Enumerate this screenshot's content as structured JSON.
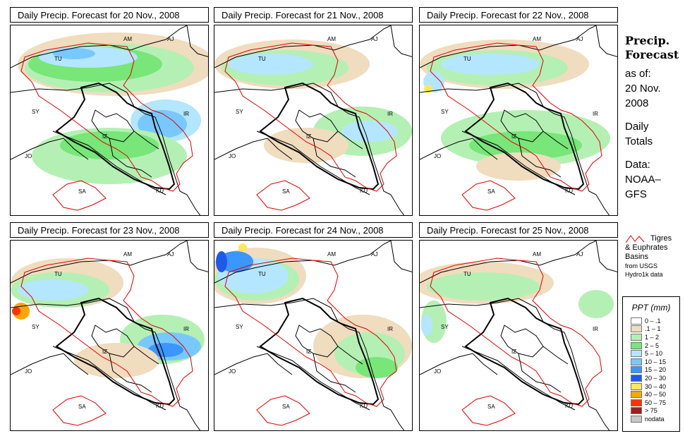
{
  "panels": [
    {
      "title": "Daily Precip. Forecast for  20 Nov., 2008"
    },
    {
      "title": "Daily Precip. Forecast for  21 Nov., 2008"
    },
    {
      "title": "Daily Precip. Forecast for  22 Nov., 2008"
    },
    {
      "title": "Daily Precip. Forecast for  23 Nov., 2008"
    },
    {
      "title": "Daily Precip. Forecast for  24 Nov., 2008"
    },
    {
      "title": "Daily Precip. Forecast for  25 Nov., 2008"
    }
  ],
  "country_labels": [
    "AM",
    "AJ",
    "TU",
    "SY",
    "IR",
    "IZ",
    "JO",
    "SA",
    "KU"
  ],
  "side": {
    "heading1": "Precip.",
    "heading2": "Forecast",
    "as_of": "as of:",
    "date1": "20 Nov.",
    "date2": "2008",
    "daily1": "Daily",
    "daily2": "Totals",
    "data1": "Data:",
    "data2": "NOAA–",
    "data3": "GFS"
  },
  "basin_legend": {
    "line1": "Tigres",
    "line2": "& Euphrates",
    "line3": "Basins",
    "line4": "from USGS",
    "line5": "Hydro1k data"
  },
  "scale": {
    "title": "PPT (mm)",
    "items": [
      {
        "label": "0 – .1",
        "color": "#ffffff"
      },
      {
        "label": ".1 – 1",
        "color": "#f0dcbe"
      },
      {
        "label": "1 – 2",
        "color": "#b4f0b4"
      },
      {
        "label": "2 – 5",
        "color": "#78e678"
      },
      {
        "label": "5 – 10",
        "color": "#b4e6ff"
      },
      {
        "label": "10 – 15",
        "color": "#78c8ff"
      },
      {
        "label": "15 – 20",
        "color": "#3c96ff"
      },
      {
        "label": "20 – 30",
        "color": "#1e5ae6"
      },
      {
        "label": "30 – 40",
        "color": "#ffe664"
      },
      {
        "label": "40 – 50",
        "color": "#ffa500"
      },
      {
        "label": "50 – 75",
        "color": "#ff3200"
      },
      {
        "label": "> 75",
        "color": "#a01e1e"
      },
      {
        "label": "nodata",
        "color": "#c8c8c8"
      }
    ]
  }
}
